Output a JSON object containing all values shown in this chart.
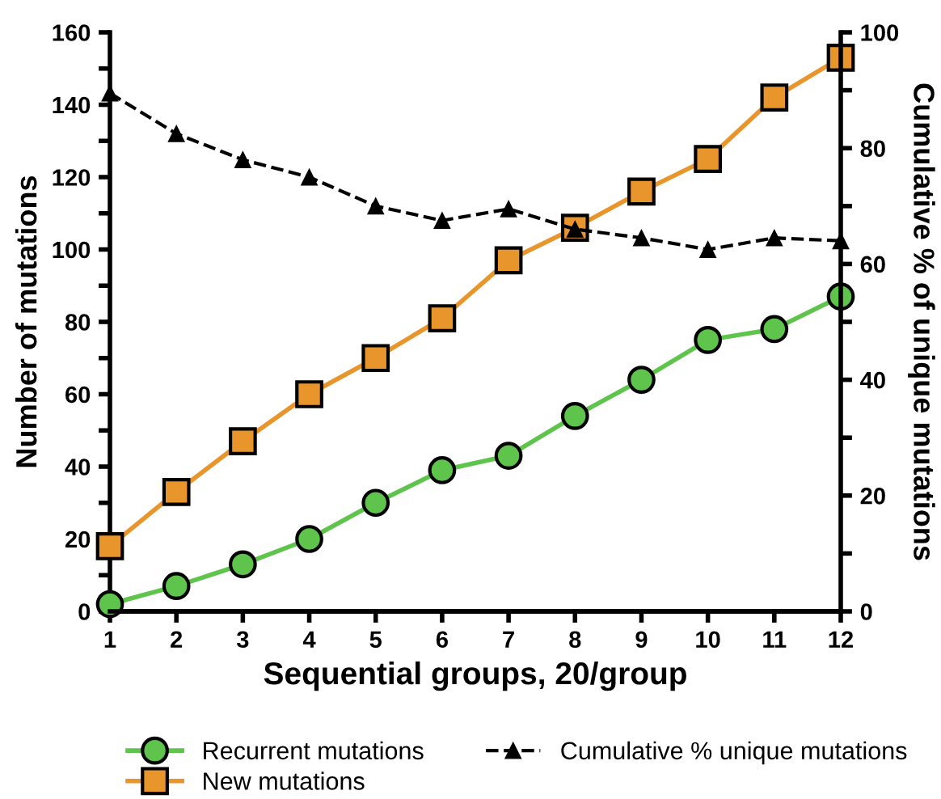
{
  "chart_data": {
    "type": "line",
    "xlabel": "Sequential groups, 20/group",
    "ylabel": "Number of mutations",
    "y2label": "Cumulative % of unique mutations",
    "x": [
      1,
      2,
      3,
      4,
      5,
      6,
      7,
      8,
      9,
      10,
      11,
      12
    ],
    "series": [
      {
        "name": "Recurrent mutations",
        "color": "#5ec44c",
        "marker": "circle",
        "line_style": "solid",
        "values": [
          2,
          7,
          13,
          20,
          30,
          39,
          43,
          54,
          64,
          75,
          78,
          87
        ]
      },
      {
        "name": "New mutations",
        "color": "#e8952c",
        "marker": "square",
        "line_style": "solid",
        "values": [
          18,
          33,
          47,
          60,
          70,
          81,
          97,
          106,
          116,
          125,
          142,
          153
        ]
      },
      {
        "name": "Cumulative % unique mutations",
        "color": "#000000",
        "marker": "triangle",
        "line_style": "dashed",
        "axis": "y2",
        "values": [
          89.5,
          82.5,
          78,
          75,
          70,
          67.5,
          69.5,
          66,
          64.5,
          62.5,
          64.5,
          64
        ]
      }
    ],
    "xlim": [
      1,
      12
    ],
    "xticks": [
      1,
      2,
      3,
      4,
      5,
      6,
      7,
      8,
      9,
      10,
      11,
      12
    ],
    "ylim": [
      0,
      160
    ],
    "yticks": [
      0,
      {
        "value": 10,
        "label": null
      },
      20,
      {
        "value": 30,
        "label": null
      },
      40,
      {
        "value": 50,
        "label": null
      },
      60,
      {
        "value": 70,
        "label": null
      },
      80,
      {
        "value": 90,
        "label": null
      },
      100,
      {
        "value": 110,
        "label": null
      },
      120,
      {
        "value": 130,
        "label": null
      },
      140,
      {
        "value": 150,
        "label": null
      },
      160
    ],
    "y2lim": [
      0,
      100
    ],
    "y2ticks": [
      0,
      {
        "value": 10,
        "label": null
      },
      20,
      {
        "value": 30,
        "label": null
      },
      40,
      {
        "value": 50,
        "label": null
      },
      60,
      {
        "value": 70,
        "label": null
      },
      80,
      {
        "value": 90,
        "label": null
      },
      100
    ],
    "grid": false,
    "legend": "bottom"
  }
}
